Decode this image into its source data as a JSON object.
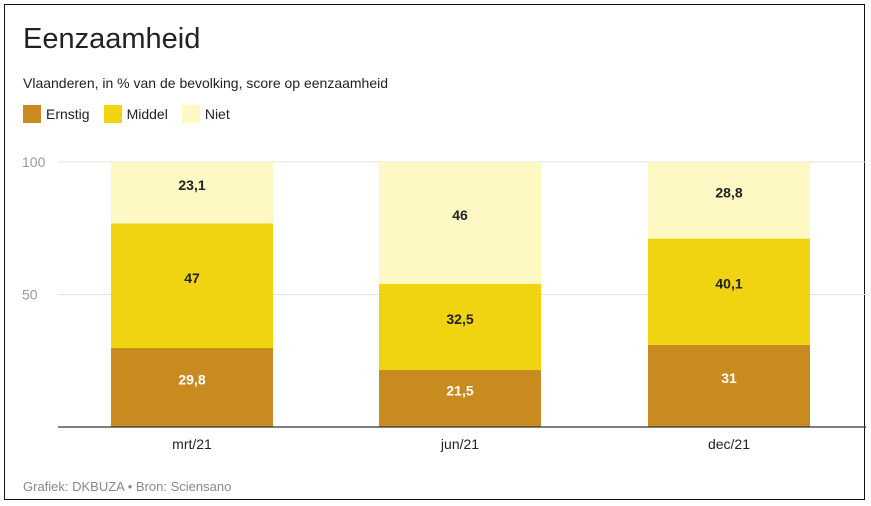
{
  "chart_data": {
    "type": "bar",
    "stacked": true,
    "title": "Eenzaamheid",
    "subtitle": "Vlaanderen, in % van de bevolking, score op eenzaamheid",
    "categories": [
      "mrt/21",
      "jun/21",
      "dec/21"
    ],
    "series": [
      {
        "name": "Ernstig",
        "color": "#c98b1f",
        "values": [
          29.8,
          21.5,
          31
        ],
        "labels": [
          "29,8",
          "21,5",
          "31"
        ],
        "label_color": "#ffffff"
      },
      {
        "name": "Middel",
        "color": "#f0d412",
        "values": [
          47,
          32.5,
          40.1
        ],
        "labels": [
          "47",
          "32,5",
          "40,1"
        ],
        "label_color": "#222222"
      },
      {
        "name": "Niet",
        "color": "#fdf8c4",
        "values": [
          23.1,
          46,
          28.8
        ],
        "labels": [
          "23,1",
          "46",
          "28,8"
        ],
        "label_color": "#222222"
      }
    ],
    "y_ticks": [
      "50",
      "100"
    ],
    "ylim": [
      0,
      100
    ],
    "grid": true,
    "legend_position": "top-left",
    "source": "Grafiek: DKBUZA • Bron: Sciensano"
  }
}
